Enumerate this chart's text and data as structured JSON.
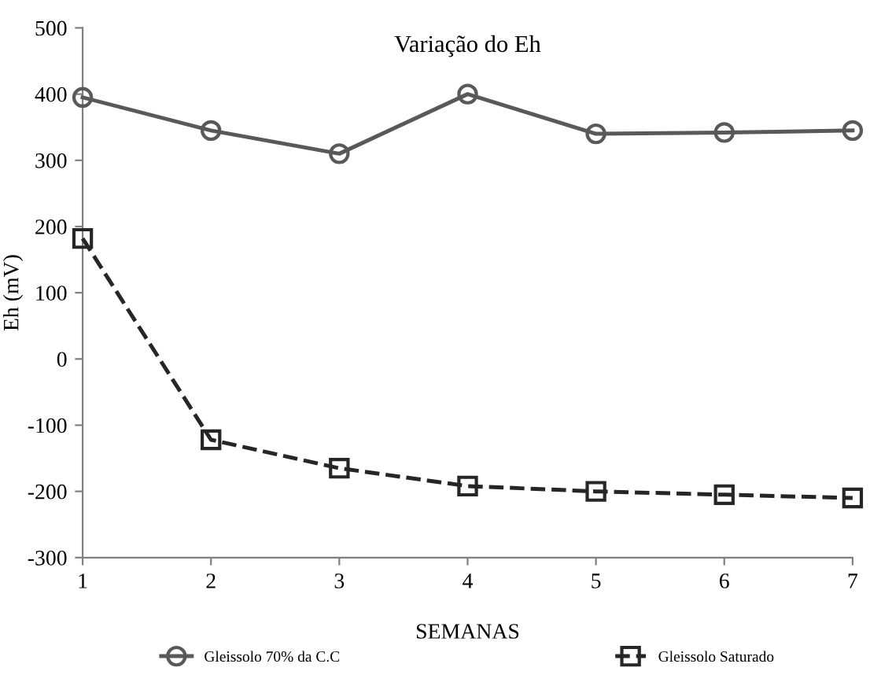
{
  "chart_data": {
    "type": "line",
    "title": "Variação do Eh",
    "xlabel": "SEMANAS",
    "ylabel": "Eh (mV)",
    "x": [
      1,
      2,
      3,
      4,
      5,
      6,
      7
    ],
    "series": [
      {
        "name": "Gleissolo 70% da C.C",
        "color": "#595959",
        "marker": "circle",
        "line_style": "solid",
        "values": [
          395,
          345,
          310,
          400,
          340,
          342,
          345
        ]
      },
      {
        "name": "Gleissolo Saturado",
        "color": "#262626",
        "marker": "square",
        "line_style": "dashed",
        "values": [
          182,
          -122,
          -165,
          -192,
          -200,
          -205,
          -210
        ]
      }
    ],
    "xlim": [
      1,
      7
    ],
    "xticks": [
      1,
      2,
      3,
      4,
      5,
      6,
      7
    ],
    "ylim": [
      -300,
      500
    ],
    "yticks": [
      -300,
      -200,
      -100,
      0,
      100,
      200,
      300,
      400,
      500
    ],
    "grid": false,
    "legend": "bottom"
  }
}
